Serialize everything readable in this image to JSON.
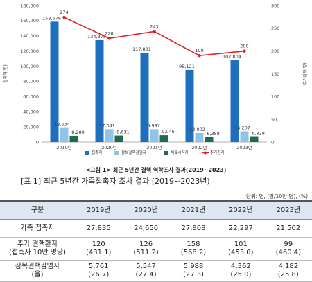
{
  "chart_data": {
    "type": "bar",
    "categories": [
      "2019년",
      "2020년",
      "2021년",
      "2022년",
      "2023년"
    ],
    "left_axis": {
      "label": "접촉자(명)",
      "ylim": [
        0,
        180000
      ],
      "ticks": [
        "0",
        "20,000",
        "40,000",
        "60,000",
        "80,000",
        "100,000",
        "120,000",
        "140,000",
        "160,000",
        "180,000"
      ]
    },
    "right_axis": {
      "label": "추가환자(명)",
      "ylim": [
        0,
        300
      ],
      "ticks": [
        "0",
        "50",
        "100",
        "150",
        "200",
        "250",
        "300"
      ]
    },
    "series": [
      {
        "name": "접촉자",
        "kind": "bar",
        "color": "#1f6fbf",
        "values": [
          158678,
          134373,
          117881,
          95121,
          107804
        ],
        "labels": [
          "158,678",
          "134,373",
          "117,881",
          "95,121",
          "107,804"
        ]
      },
      {
        "name": "잠복결핵감염자",
        "kind": "bar",
        "color": "#8fc3e8",
        "values": [
          18634,
          17041,
          16997,
          12002,
          14207
        ],
        "labels": [
          "18,634",
          "17,041",
          "16,997",
          "12,002",
          "14,207"
        ]
      },
      {
        "name": "치료시작자",
        "kind": "bar",
        "color": "#1e6a4a",
        "values": [
          8280,
          8631,
          9046,
          6388,
          6829
        ],
        "labels": [
          "8,280",
          "8,631",
          "9,046",
          "6,388",
          "6,829"
        ]
      },
      {
        "name": "추가환자",
        "kind": "line",
        "axis": "right",
        "color": "#e02020",
        "values": [
          274,
          228,
          243,
          190,
          200
        ],
        "labels": [
          "274",
          "228",
          "243",
          "190",
          "200"
        ]
      }
    ],
    "legend_position": "bottom"
  },
  "figure_caption": "<그림 1> 최근 5년간 결핵 역학조사 결과(2019~2023)",
  "table_caption": "[표 1] 최근 5년간 가족접촉자 조사 결과 (2019~2023년)",
  "unit_note": "단위: 명, (명/10만 명), (%)",
  "table": {
    "headers": [
      "구분",
      "2019년",
      "2020년",
      "2021년",
      "2022년",
      "2023년"
    ],
    "rows": [
      {
        "label": [
          "가족 접촉자"
        ],
        "cells": [
          [
            "27,835"
          ],
          [
            "24,650"
          ],
          [
            "27,808"
          ],
          [
            "22,297"
          ],
          [
            "21,502"
          ]
        ]
      },
      {
        "label": [
          "추가 결핵환자",
          "(접촉자 10만 명당)"
        ],
        "cells": [
          [
            "120",
            "(431.1)"
          ],
          [
            "126",
            "(511.2)"
          ],
          [
            "158",
            "(568.2)"
          ],
          [
            "101",
            "(453.0)"
          ],
          [
            "99",
            "(460.4)"
          ]
        ]
      },
      {
        "label": [
          "잠복결핵감염자",
          "(율)"
        ],
        "cells": [
          [
            "5,761",
            "(26.7)"
          ],
          [
            "5,547",
            "(27.4)"
          ],
          [
            "5,988",
            "(27.3)"
          ],
          [
            "4,362",
            "(25.0)"
          ],
          [
            "4,182",
            "(25.8)"
          ]
        ]
      }
    ]
  }
}
